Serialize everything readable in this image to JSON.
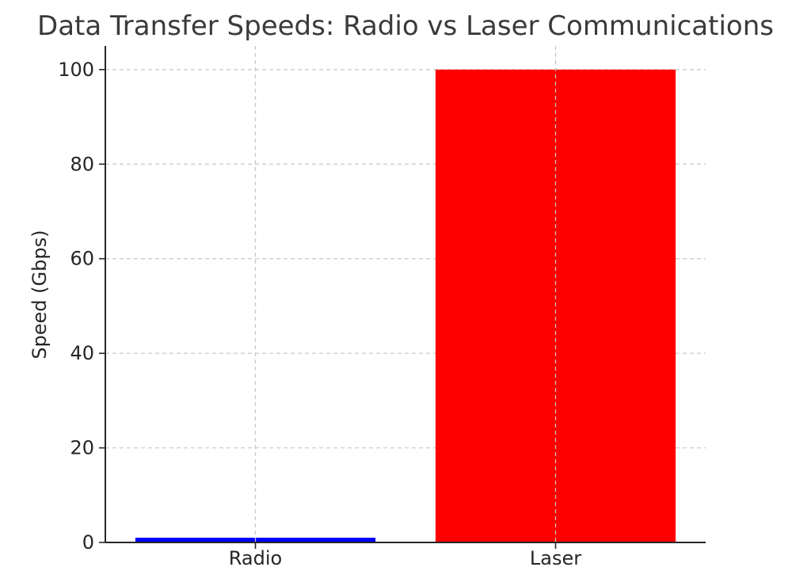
{
  "chart_data": {
    "type": "bar",
    "title": "Data Transfer Speeds: Radio vs Laser Communications",
    "xlabel": "",
    "ylabel": "Speed (Gbps)",
    "categories": [
      "Radio",
      "Laser"
    ],
    "values": [
      1,
      100
    ],
    "colors": [
      "#0000ff",
      "#ff0000"
    ],
    "ylim": [
      0,
      105
    ],
    "yticks": [
      0,
      20,
      40,
      60,
      80,
      100
    ],
    "grid": true
  }
}
